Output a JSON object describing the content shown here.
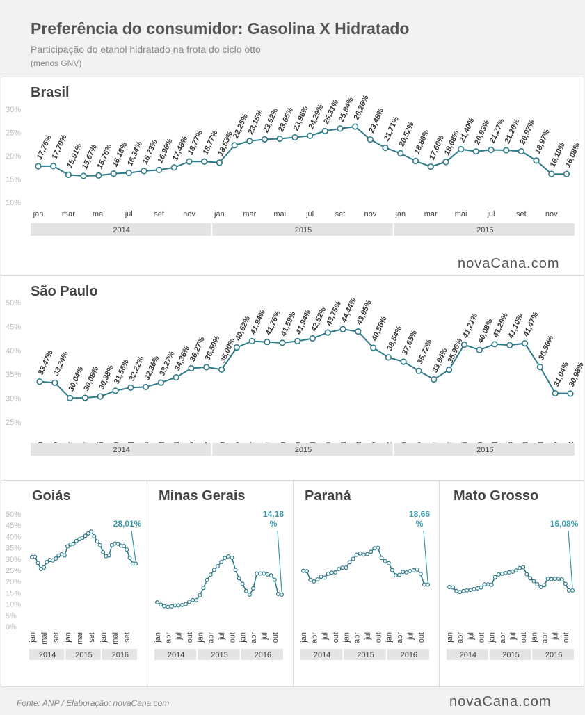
{
  "header": {
    "title": "Preferência do consumidor: Gasolina X Hidratado",
    "subtitle": "Participação do etanol hidratado na frota do ciclo otto",
    "note": "(menos GNV)"
  },
  "footer": {
    "source": "Fonte: ANP  / Elaboração: novaCana.com",
    "logo": "novaCana.com",
    "logo_small": "novaCana.com"
  },
  "colors": {
    "line": "#2e7a88",
    "accent": "#3a9aaa",
    "band": "#e4e4e4"
  },
  "chart_data": [
    {
      "id": "brasil",
      "type": "line",
      "title": "Brasil",
      "ylim": [
        10,
        30
      ],
      "yticks": [
        "10%",
        "15%",
        "20%",
        "25%",
        "30%"
      ],
      "x": [
        "jan 2014",
        "fev 2014",
        "mar 2014",
        "abr 2014",
        "mai 2014",
        "jun 2014",
        "jul 2014",
        "ago 2014",
        "set 2014",
        "out 2014",
        "nov 2014",
        "dez 2014",
        "jan 2015",
        "fev 2015",
        "mar 2015",
        "abr 2015",
        "mai 2015",
        "jun 2015",
        "jul 2015",
        "ago 2015",
        "set 2015",
        "out 2015",
        "nov 2015",
        "dez 2015",
        "jan 2016",
        "fev 2016",
        "mar 2016",
        "abr 2016",
        "mai 2016",
        "jun 2016",
        "jul 2016",
        "ago 2016",
        "set 2016",
        "out 2016",
        "nov 2016",
        "dez 2016"
      ],
      "xtick_labels": [
        "jan",
        "",
        "mar",
        "",
        "mai",
        "",
        "jul",
        "",
        "set",
        "",
        "nov",
        "",
        "jan",
        "",
        "mar",
        "",
        "mai",
        "",
        "jul",
        "",
        "set",
        "",
        "nov",
        "",
        "jan",
        "",
        "mar",
        "",
        "mai",
        "",
        "jul",
        "",
        "set",
        "",
        "nov",
        ""
      ],
      "years": [
        "2014",
        "2015",
        "2016"
      ],
      "values": [
        17.76,
        17.79,
        15.91,
        15.67,
        15.76,
        16.18,
        16.34,
        16.73,
        16.96,
        17.48,
        18.77,
        18.77,
        18.53,
        22.25,
        23.15,
        23.52,
        23.65,
        23.96,
        24.29,
        25.31,
        25.84,
        26.26,
        23.48,
        21.71,
        20.52,
        18.88,
        17.66,
        18.68,
        21.4,
        20.93,
        21.27,
        21.2,
        20.97,
        18.97,
        16.1,
        16.08
      ],
      "labels": [
        "17,76%",
        "17,79%",
        "15,91%",
        "15,67%",
        "15,76%",
        "16,18%",
        "16,34%",
        "16,73%",
        "16,96%",
        "17,48%",
        "18,77%",
        "18,77%",
        "18,53%",
        "22,25%",
        "23,15%",
        "23,52%",
        "23,65%",
        "23,96%",
        "24,29%",
        "25,31%",
        "25,84%",
        "26,26%",
        "23,48%",
        "21,71%",
        "20,52%",
        "18,88%",
        "17,66%",
        "18,68%",
        "21,40%",
        "20,93%",
        "21,27%",
        "21,20%",
        "20,97%",
        "18,97%",
        "16,10%",
        "16,08%"
      ]
    },
    {
      "id": "sao-paulo",
      "type": "line",
      "title": "São Paulo",
      "ylim": [
        25,
        50
      ],
      "yticks": [
        "25%",
        "30%",
        "35%",
        "40%",
        "45%",
        "50%"
      ],
      "x": [
        "jan 2014",
        "fev 2014",
        "mar 2014",
        "abr 2014",
        "mai 2014",
        "jun 2014",
        "jul 2014",
        "ago 2014",
        "set 2014",
        "out 2014",
        "nov 2014",
        "dez 2014",
        "jan 2015",
        "fev 2015",
        "mar 2015",
        "abr 2015",
        "mai 2015",
        "jun 2015",
        "jul 2015",
        "ago 2015",
        "set 2015",
        "out 2015",
        "nov 2015",
        "dez 2015",
        "jan 2016",
        "fev 2016",
        "mar 2016",
        "abr 2016",
        "mai 2016",
        "jun 2016",
        "jul 2016",
        "ago 2016",
        "set 2016",
        "out 2016",
        "nov 2016",
        "dez 2016"
      ],
      "xtick_labels": [
        "jan",
        "fev",
        "mar",
        "abr",
        "mai",
        "jun",
        "jul",
        "ago",
        "set",
        "out",
        "nov",
        "dez",
        "jan",
        "fev",
        "mar",
        "abr",
        "mai",
        "jun",
        "jul",
        "ago",
        "set",
        "out",
        "nov",
        "dez",
        "jan",
        "fev",
        "mar",
        "abr",
        "mai",
        "jun",
        "jul",
        "ago",
        "set",
        "out",
        "nov",
        "dez"
      ],
      "years": [
        "2014",
        "2015",
        "2016"
      ],
      "values": [
        33.47,
        33.24,
        30.04,
        30.08,
        30.38,
        31.56,
        32.22,
        32.36,
        33.27,
        34.36,
        36.27,
        36.5,
        36.0,
        40.62,
        41.94,
        41.76,
        41.59,
        41.94,
        42.52,
        43.75,
        44.44,
        43.95,
        40.56,
        38.54,
        37.65,
        35.72,
        33.94,
        35.96,
        41.21,
        40.08,
        41.29,
        41.1,
        41.47,
        36.56,
        31.04,
        30.98
      ],
      "labels": [
        "33,47%",
        "33,24%",
        "30,04%",
        "30,08%",
        "30,38%",
        "31,56%",
        "32,22%",
        "32,36%",
        "33,27%",
        "34,36%",
        "36,27%",
        "36,50%",
        "36,00%",
        "40,62%",
        "41,94%",
        "41,76%",
        "41,59%",
        "41,94%",
        "42,52%",
        "43,75%",
        "44,44%",
        "43,95%",
        "40,56%",
        "38,54%",
        "37,65%",
        "35,72%",
        "33,94%",
        "35,96%",
        "41,21%",
        "40,08%",
        "41,29%",
        "41,10%",
        "41,47%",
        "36,56%",
        "31,04%",
        "30,98%"
      ]
    },
    {
      "id": "goias",
      "type": "line",
      "title": "Goiás",
      "ylim": [
        0,
        50
      ],
      "yticks": [
        "0%",
        "5%",
        "10%",
        "15%",
        "20%",
        "25%",
        "30%",
        "35%",
        "40%",
        "45%",
        "50%"
      ],
      "xtick_labels": [
        "jan",
        "",
        "",
        "",
        "mai",
        "",
        "",
        "",
        "set",
        "",
        "",
        "",
        "jan",
        "",
        "",
        "",
        "mai",
        "",
        "",
        "",
        "set",
        "",
        "",
        "",
        "jan",
        "",
        "",
        "",
        "mai",
        "",
        "",
        "",
        "set",
        "",
        "",
        ""
      ],
      "years": [
        "2014",
        "2015",
        "2016"
      ],
      "values": [
        30.9,
        31.0,
        28.3,
        25.6,
        26.3,
        28.7,
        29.6,
        29.4,
        30.2,
        31.6,
        32.1,
        31.6,
        35.6,
        36.5,
        36.8,
        38.0,
        38.8,
        39.4,
        40.3,
        41.4,
        42.2,
        40.1,
        37.8,
        36.2,
        33.1,
        31.3,
        31.6,
        36.2,
        36.9,
        36.8,
        36.0,
        35.8,
        34.2,
        30.5,
        28.0,
        28.01
      ],
      "end_label": "28,01%"
    },
    {
      "id": "minas-gerais",
      "type": "line",
      "title": "Minas Gerais",
      "ylim": [
        0,
        50
      ],
      "xtick_labels": [
        "jan",
        "",
        "",
        "abr",
        "",
        "",
        "jul",
        "",
        "",
        "out",
        "",
        "",
        "jan",
        "",
        "",
        "abr",
        "",
        "",
        "jul",
        "",
        "",
        "out",
        "",
        "",
        "jan",
        "",
        "",
        "abr",
        "",
        "",
        "jul",
        "",
        "",
        "out",
        "",
        ""
      ],
      "years": [
        "2014",
        "2015",
        "2016"
      ],
      "values": [
        10.8,
        9.8,
        9.1,
        8.8,
        9.0,
        9.4,
        9.4,
        9.6,
        10.0,
        11.0,
        11.8,
        11.8,
        14.0,
        17.2,
        20.8,
        23.1,
        25.2,
        26.8,
        28.7,
        30.5,
        31.2,
        30.6,
        25.2,
        21.5,
        19.0,
        15.8,
        14.2,
        17.0,
        23.6,
        23.6,
        23.6,
        23.2,
        22.8,
        20.8,
        14.5,
        14.18
      ],
      "end_label": "14,18 %"
    },
    {
      "id": "parana",
      "type": "line",
      "title": "Paraná",
      "ylim": [
        0,
        50
      ],
      "xtick_labels": [
        "jan",
        "",
        "",
        "abr",
        "",
        "",
        "jul",
        "",
        "",
        "out",
        "",
        "",
        "jan",
        "",
        "",
        "abr",
        "",
        "",
        "jul",
        "",
        "",
        "out",
        "",
        "",
        "jan",
        "",
        "",
        "abr",
        "",
        "",
        "jul",
        "",
        "",
        "out",
        "",
        ""
      ],
      "years": [
        "2014",
        "2015",
        "2016"
      ],
      "values": [
        24.8,
        24.6,
        20.8,
        20.1,
        21.0,
        22.2,
        21.8,
        23.5,
        24.0,
        24.1,
        25.6,
        26.2,
        26.2,
        28.6,
        30.1,
        31.9,
        32.5,
        32.0,
        32.2,
        33.2,
        34.8,
        35.0,
        30.5,
        29.1,
        28.2,
        25.1,
        22.8,
        23.0,
        24.3,
        24.1,
        24.7,
        25.0,
        25.4,
        23.4,
        18.7,
        18.66
      ],
      "end_label": "18,66 %"
    },
    {
      "id": "mato-grosso",
      "type": "line",
      "title": "Mato Grosso",
      "ylim": [
        0,
        50
      ],
      "xtick_labels": [
        "jan",
        "",
        "",
        "abr",
        "",
        "",
        "jul",
        "",
        "",
        "out",
        "",
        "",
        "jan",
        "",
        "",
        "abr",
        "",
        "",
        "jul",
        "",
        "",
        "out",
        "",
        "",
        "jan",
        "",
        "",
        "abr",
        "",
        "",
        "jul",
        "",
        "",
        "out",
        "",
        ""
      ],
      "years": [
        "2014",
        "2015",
        "2016"
      ],
      "values": [
        17.6,
        17.4,
        15.8,
        15.4,
        15.8,
        16.1,
        16.3,
        16.7,
        17.0,
        17.4,
        18.8,
        18.8,
        18.6,
        22.0,
        23.2,
        23.5,
        23.8,
        24.1,
        24.4,
        25.0,
        26.0,
        26.4,
        23.3,
        21.5,
        20.2,
        18.8,
        17.6,
        18.4,
        21.3,
        21.1,
        21.3,
        21.3,
        21.0,
        19.0,
        16.1,
        16.08
      ],
      "end_label": "16,08%"
    }
  ]
}
